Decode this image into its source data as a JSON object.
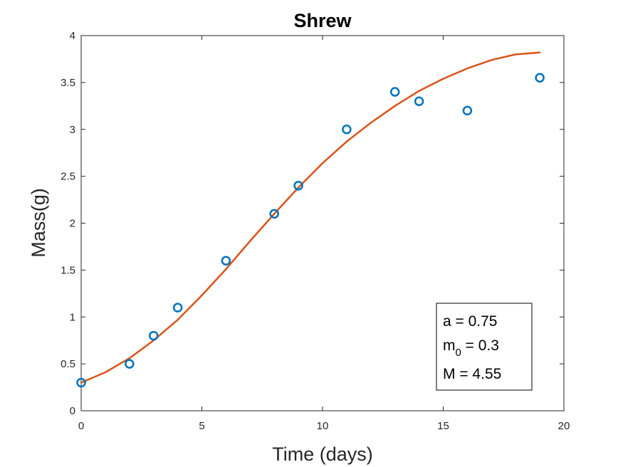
{
  "chart_data": {
    "type": "scatter",
    "title": "Shrew",
    "xlabel": "Time (days)",
    "ylabel": "Mass(g)",
    "xlim": [
      0,
      20
    ],
    "ylim": [
      0,
      4
    ],
    "xticks": [
      "0",
      "5",
      "10",
      "15",
      "20"
    ],
    "yticks": [
      "0",
      "0.5",
      "1",
      "1.5",
      "2",
      "2.5",
      "3",
      "3.5",
      "4"
    ],
    "grid": false,
    "series": [
      {
        "type": "scatter",
        "marker": "circle",
        "color": "#0072BD",
        "x": [
          0,
          2,
          3,
          4,
          6,
          8,
          9,
          11,
          13,
          14,
          16,
          19
        ],
        "y": [
          0.3,
          0.5,
          0.8,
          1.1,
          1.6,
          2.1,
          2.4,
          3.0,
          3.4,
          3.3,
          3.2,
          3.55
        ]
      },
      {
        "type": "line",
        "color": "#D95319",
        "model": "logistic",
        "x": [
          0,
          1,
          2,
          3,
          4,
          5,
          6,
          7,
          8,
          9,
          10,
          11,
          12,
          13,
          14,
          15,
          16,
          17,
          18,
          19
        ],
        "y": [
          0.3,
          0.41,
          0.56,
          0.75,
          0.97,
          1.23,
          1.51,
          1.81,
          2.1,
          2.38,
          2.64,
          2.87,
          3.07,
          3.25,
          3.41,
          3.54,
          3.65,
          3.74,
          3.8,
          3.82
        ]
      }
    ],
    "annotation": {
      "line1": "a = 0.75",
      "line2_main": "m",
      "line2_sub": "0",
      "line2_rest": " = 0.3",
      "line3": "M = 4.55"
    }
  }
}
